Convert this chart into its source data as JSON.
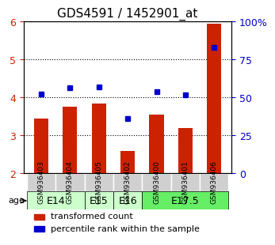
{
  "title": "GDS4591 / 1452901_at",
  "samples": [
    "GSM936403",
    "GSM936404",
    "GSM936405",
    "GSM936402",
    "GSM936400",
    "GSM936401",
    "GSM936406"
  ],
  "bar_values": [
    3.45,
    3.75,
    3.85,
    2.6,
    3.55,
    3.2,
    5.95
  ],
  "percentile_values": [
    4.1,
    4.25,
    4.28,
    3.45,
    4.15,
    4.08,
    5.33
  ],
  "bar_color": "#cc2200",
  "dot_color": "#0000cc",
  "ylim_left": [
    2,
    6
  ],
  "ylim_right": [
    0,
    100
  ],
  "yticks_left": [
    2,
    3,
    4,
    5,
    6
  ],
  "yticks_right": [
    0,
    25,
    50,
    75,
    100
  ],
  "ytick_labels_right": [
    "0",
    "25",
    "50",
    "75",
    "100%"
  ],
  "age_groups": [
    {
      "label": "E14",
      "samples": [
        0,
        1
      ],
      "color": "#ccffcc"
    },
    {
      "label": "E15",
      "samples": [
        2
      ],
      "color": "#ccffcc"
    },
    {
      "label": "E16",
      "samples": [
        3
      ],
      "color": "#ccffcc"
    },
    {
      "label": "E17.5",
      "samples": [
        4,
        5,
        6
      ],
      "color": "#66ee66"
    }
  ],
  "legend_bar_label": "transformed count",
  "legend_dot_label": "percentile rank within the sample",
  "background_color": "#ffffff",
  "plot_bg_color": "#ffffff",
  "grid_color": "#000000",
  "left_tick_color": "#cc2200",
  "right_tick_color": "#0000cc"
}
